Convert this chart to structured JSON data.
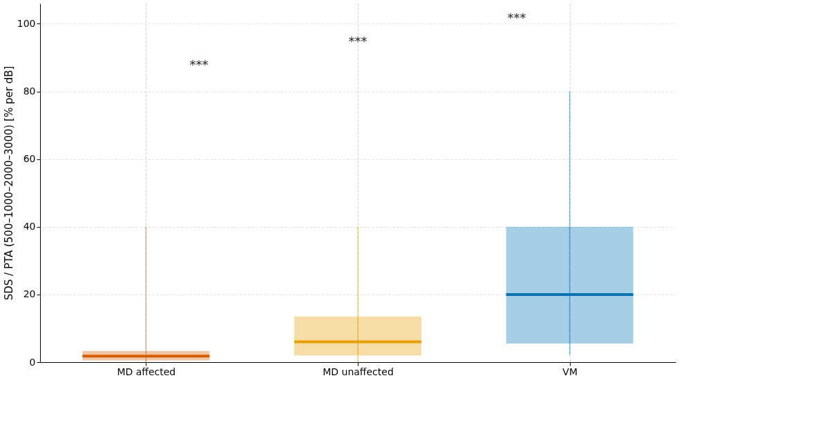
{
  "chart_data": {
    "type": "box",
    "ylabel": "SDS / PTA (500–1000–2000–3000)  [% per dB]",
    "categories": [
      "MD affected",
      "MD unaffected",
      "VM"
    ],
    "series": [
      {
        "color": "#d55e00",
        "boxes": [
          {
            "low": 0,
            "q1": 0.5,
            "median": 1.8,
            "q3": 3.3,
            "high": 40
          },
          null,
          null
        ]
      },
      {
        "color": "#e69f00",
        "boxes": [
          null,
          {
            "low": 0,
            "q1": 2,
            "median": 6,
            "q3": 13.5,
            "high": 40
          },
          null
        ]
      },
      {
        "color": "#0072b2",
        "boxes": [
          null,
          null,
          {
            "low": 2,
            "q1": 5.5,
            "median": 20,
            "q3": 40,
            "high": 80
          }
        ]
      }
    ],
    "ylim": [
      0,
      106
    ],
    "yticks": [
      0,
      20,
      40,
      60,
      80,
      100
    ],
    "grid": true,
    "annotations": [
      "***",
      "***",
      "***"
    ]
  }
}
